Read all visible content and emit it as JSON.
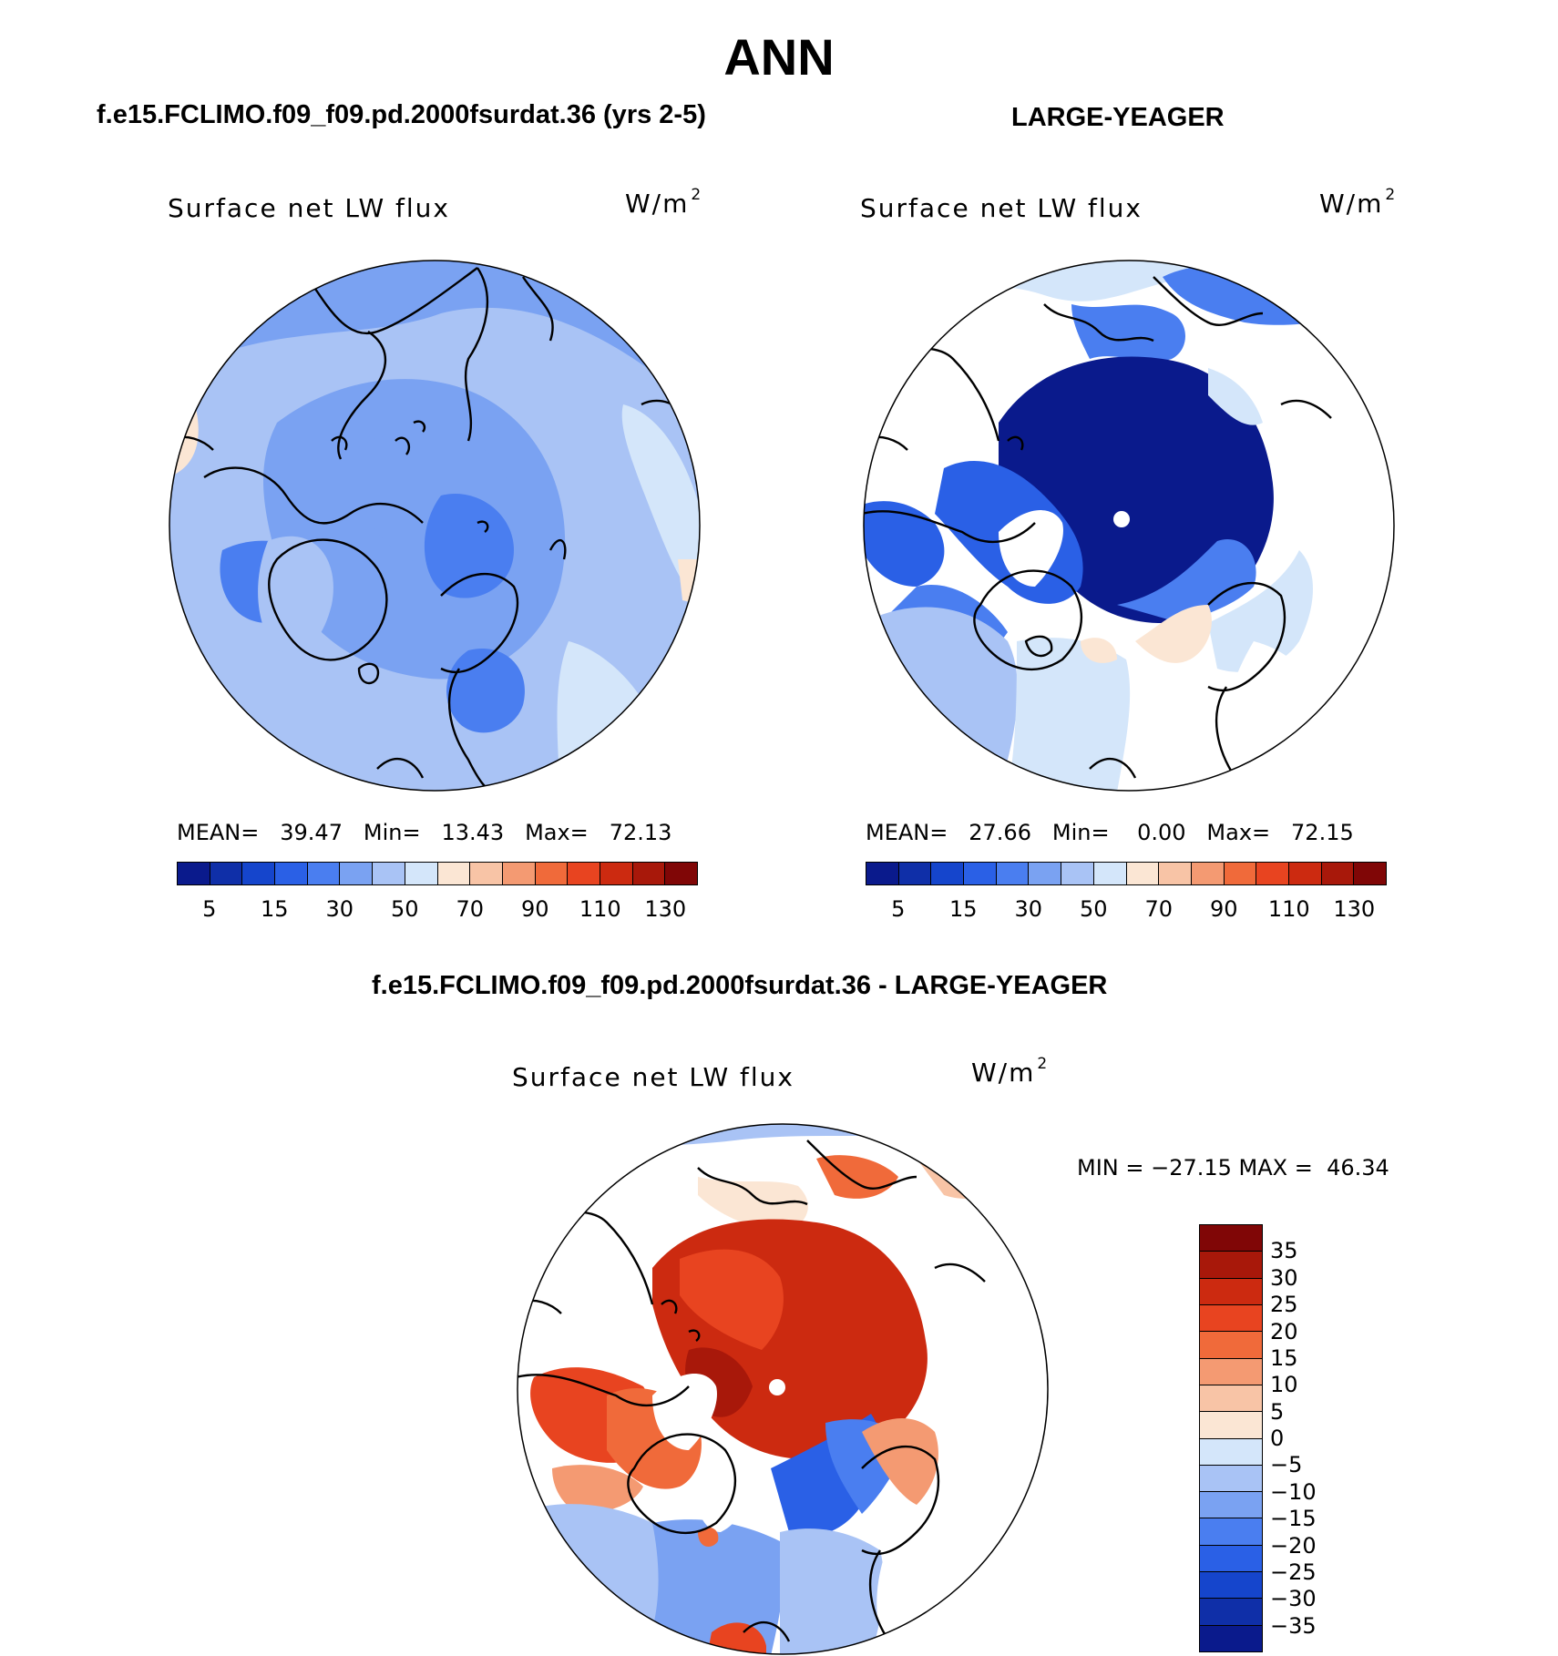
{
  "title": "ANN",
  "panels": [
    {
      "case_title": "f.e15.FCLIMO.f09_f09.pd.2000fsurdat.36 (yrs 2-5)",
      "variable": "Surface net LW flux",
      "units": "W/m",
      "units_exp": "2",
      "stats": {
        "mean_label": "MEAN=",
        "mean": "39.47",
        "min_label": "Min=",
        "min": "13.43",
        "max_label": "Max=",
        "max": "72.13"
      }
    },
    {
      "case_title": "LARGE-YEAGER",
      "variable": "Surface net LW flux",
      "units": "W/m",
      "units_exp": "2",
      "stats": {
        "mean_label": "MEAN=",
        "mean": "27.66",
        "min_label": "Min=",
        "min": "0.00",
        "max_label": "Max=",
        "max": "72.15"
      }
    },
    {
      "case_title": "f.e15.FCLIMO.f09_f09.pd.2000fsurdat.36 - LARGE-YEAGER",
      "variable": "Surface net LW flux",
      "units": "W/m",
      "units_exp": "2",
      "minmax": "MIN = −27.15 MAX =  46.34"
    }
  ],
  "colorbar_abs": {
    "colors": [
      "#0a1a8c",
      "#0f2fa8",
      "#1545cc",
      "#2a60e6",
      "#4a7ef0",
      "#7aa2f2",
      "#a9c3f5",
      "#d4e6fa",
      "#fbe6d4",
      "#f8c4a6",
      "#f49a72",
      "#f06a3a",
      "#e84420",
      "#cc2a10",
      "#a8180a",
      "#800606"
    ],
    "ticks": [
      "5",
      "15",
      "30",
      "50",
      "70",
      "90",
      "110",
      "130"
    ]
  },
  "colorbar_diff": {
    "colors": [
      "#800606",
      "#a8180a",
      "#cc2a10",
      "#e84420",
      "#f06a3a",
      "#f49a72",
      "#f8c4a6",
      "#fbe6d4",
      "#d4e6fa",
      "#a9c3f5",
      "#7aa2f2",
      "#4a7ef0",
      "#2a60e6",
      "#1545cc",
      "#0f2fa8",
      "#0a1a8c"
    ],
    "ticks": [
      "35",
      "30",
      "25",
      "20",
      "15",
      "10",
      "5",
      "0",
      "−5",
      "−10",
      "−15",
      "−20",
      "−25",
      "−30",
      "−35"
    ]
  }
}
